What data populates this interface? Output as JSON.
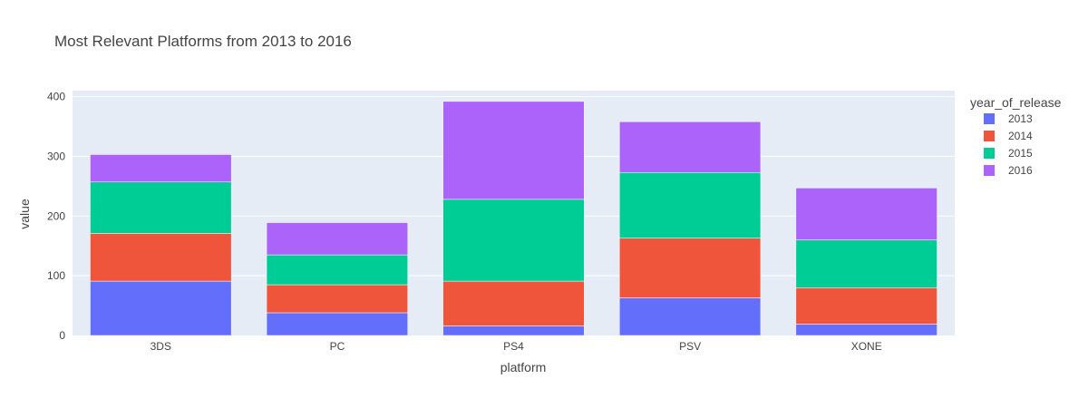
{
  "chart_data": {
    "type": "bar",
    "stacked": true,
    "title": "Most Relevant Platforms from 2013 to 2016",
    "xlabel": "platform",
    "ylabel": "value",
    "categories": [
      "3DS",
      "PC",
      "PS4",
      "PSV",
      "XONE"
    ],
    "ylim": [
      0,
      410
    ],
    "yticks": [
      0,
      100,
      200,
      300,
      400
    ],
    "grid": true,
    "legend": {
      "title": "year_of_release",
      "placement": "right"
    },
    "series": [
      {
        "name": "2013",
        "color": "#636efa",
        "values": [
          91,
          38,
          16,
          63,
          19
        ]
      },
      {
        "name": "2014",
        "color": "#ef553b",
        "values": [
          80,
          47,
          75,
          100,
          61
        ]
      },
      {
        "name": "2015",
        "color": "#00cc96",
        "values": [
          86,
          50,
          137,
          110,
          80
        ]
      },
      {
        "name": "2016",
        "color": "#ab63fa",
        "values": [
          46,
          54,
          164,
          85,
          87
        ]
      }
    ]
  },
  "colors": {
    "plot_bg": "#e5ecf6",
    "grid": "#ffffff",
    "text": "#444444"
  }
}
